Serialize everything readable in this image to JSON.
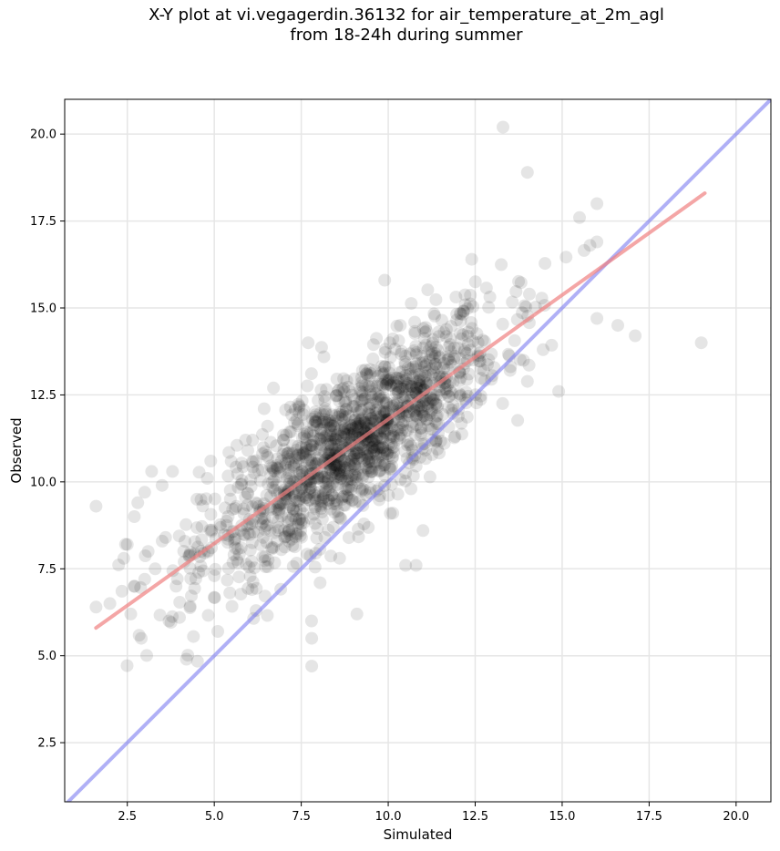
{
  "chart_data": {
    "type": "scatter",
    "title_line1": "X-Y plot at vi.vegagerdin.36132 for air_temperature_at_2m_agl",
    "title_line2": "from 18-24h during summer",
    "xlabel": "Simulated",
    "ylabel": "Observed",
    "xlim": [
      0.7,
      21.0
    ],
    "ylim": [
      0.8,
      21.0
    ],
    "xticks": [
      2.5,
      5.0,
      7.5,
      10.0,
      12.5,
      15.0,
      17.5,
      20.0
    ],
    "yticks": [
      2.5,
      5.0,
      7.5,
      10.0,
      12.5,
      15.0,
      17.5,
      20.0
    ],
    "xtick_labels": [
      "2.5",
      "5.0",
      "7.5",
      "10.0",
      "12.5",
      "15.0",
      "17.5",
      "20.0"
    ],
    "ytick_labels": [
      "2.5",
      "5.0",
      "7.5",
      "10.0",
      "12.5",
      "15.0",
      "17.5",
      "20.0"
    ],
    "grid": true,
    "colors": {
      "points": "#000000",
      "regression": "#f08080",
      "identity": "#7b7bf0"
    },
    "series": [
      {
        "kind": "points",
        "points": [
          [
            1.6,
            9.3
          ],
          [
            1.6,
            6.4
          ],
          [
            2.0,
            6.5
          ],
          [
            2.6,
            6.2
          ],
          [
            2.9,
            5.5
          ],
          [
            2.4,
            7.8
          ],
          [
            2.5,
            8.2
          ],
          [
            2.7,
            9.0
          ],
          [
            2.8,
            9.4
          ],
          [
            3.0,
            9.7
          ],
          [
            3.1,
            8.0
          ],
          [
            3.2,
            10.3
          ],
          [
            3.5,
            9.9
          ],
          [
            3.8,
            10.3
          ],
          [
            3.0,
            7.2
          ],
          [
            3.3,
            7.5
          ],
          [
            3.6,
            8.4
          ],
          [
            3.9,
            7.0
          ],
          [
            4.0,
            6.1
          ],
          [
            4.2,
            4.9
          ],
          [
            3.7,
            6.0
          ],
          [
            4.3,
            7.9
          ],
          [
            4.5,
            9.5
          ],
          [
            4.8,
            10.1
          ],
          [
            4.9,
            10.6
          ],
          [
            5.1,
            5.7
          ],
          [
            5.0,
            7.3
          ],
          [
            5.4,
            9.0
          ],
          [
            5.6,
            8.1
          ],
          [
            5.9,
            11.2
          ],
          [
            6.2,
            6.3
          ],
          [
            6.7,
            12.7
          ],
          [
            13.3,
            20.2
          ],
          [
            14.0,
            18.9
          ],
          [
            15.5,
            17.6
          ],
          [
            16.0,
            18.0
          ],
          [
            16.6,
            14.5
          ],
          [
            17.1,
            14.2
          ],
          [
            19.0,
            14.0
          ],
          [
            16.0,
            14.7
          ],
          [
            14.9,
            12.6
          ],
          [
            7.8,
            4.7
          ],
          [
            7.8,
            5.5
          ],
          [
            10.5,
            7.6
          ],
          [
            10.8,
            7.6
          ],
          [
            11.0,
            8.6
          ],
          [
            9.1,
            6.2
          ],
          [
            7.7,
            14.0
          ],
          [
            9.9,
            15.8
          ],
          [
            12.4,
            16.4
          ],
          [
            16.0,
            16.9
          ],
          [
            15.8,
            16.8
          ]
        ]
      },
      {
        "kind": "line",
        "name": "",
        "x": [
          1.6,
          19.1
        ],
        "y": [
          5.8,
          18.3
        ]
      },
      {
        "kind": "line",
        "name": "",
        "x": [
          0.7,
          21.0
        ],
        "y": [
          0.7,
          21.0
        ]
      }
    ]
  }
}
